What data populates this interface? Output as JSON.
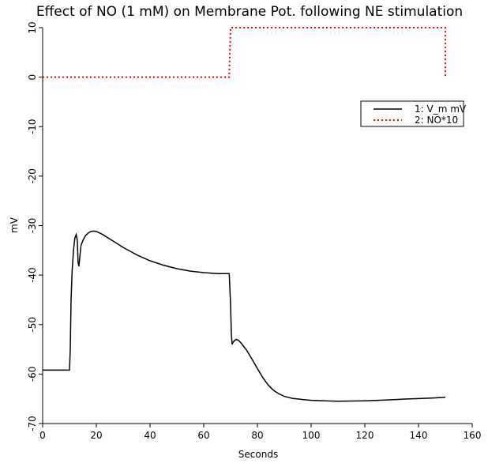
{
  "chart_data": {
    "type": "line",
    "title": "Effect of NO (1 mM) on Membrane Pot. following NE stimulation",
    "xlabel": "Seconds",
    "ylabel": "mV",
    "xlim": [
      0,
      160
    ],
    "ylim": [
      -70,
      10
    ],
    "xticks": [
      0,
      20,
      40,
      60,
      80,
      100,
      120,
      140,
      160
    ],
    "yticks": [
      10,
      0,
      -10,
      -20,
      -30,
      -40,
      -50,
      -60,
      -70
    ],
    "grid": false,
    "legend_position": "top-right",
    "legend": [
      "1: V_m mV",
      "2: NO*10"
    ],
    "series": [
      {
        "name": "1: V_m mV",
        "color": "#000000",
        "style": "solid",
        "x": [
          0,
          10,
          10.3,
          10.6,
          11,
          11.5,
          12,
          12.5,
          12.9,
          13.2,
          13.5,
          13.9,
          14.3,
          15,
          16,
          17,
          18,
          19,
          20,
          22,
          25,
          30,
          35,
          40,
          45,
          50,
          55,
          60,
          65,
          69.5,
          70,
          70.3,
          70.6,
          71,
          72,
          73,
          74,
          76,
          78,
          80,
          82,
          84,
          86,
          88,
          90,
          93,
          96,
          100,
          105,
          110,
          115,
          120,
          125,
          130,
          135,
          140,
          145,
          150
        ],
        "y": [
          -59.2,
          -59.2,
          -55,
          -45,
          -39,
          -35,
          -32.5,
          -31.8,
          -33,
          -37.5,
          -38.2,
          -36,
          -34,
          -33,
          -32,
          -31.5,
          -31.2,
          -31.1,
          -31.2,
          -31.7,
          -32.7,
          -34.4,
          -35.9,
          -37.1,
          -38,
          -38.7,
          -39.2,
          -39.5,
          -39.7,
          -39.7,
          -46,
          -52,
          -54,
          -53.5,
          -53,
          -53.2,
          -53.8,
          -55.2,
          -57,
          -58.9,
          -60.7,
          -62.2,
          -63.3,
          -64,
          -64.5,
          -64.9,
          -65.1,
          -65.3,
          -65.4,
          -65.5,
          -65.45,
          -65.4,
          -65.3,
          -65.2,
          -65.05,
          -64.95,
          -64.85,
          -64.7
        ]
      },
      {
        "name": "2: NO*10",
        "color": "#ff0000",
        "style": "dotted",
        "x": [
          0,
          69.5,
          70,
          150,
          150
        ],
        "y": [
          0,
          0,
          10,
          10,
          0
        ]
      }
    ]
  }
}
